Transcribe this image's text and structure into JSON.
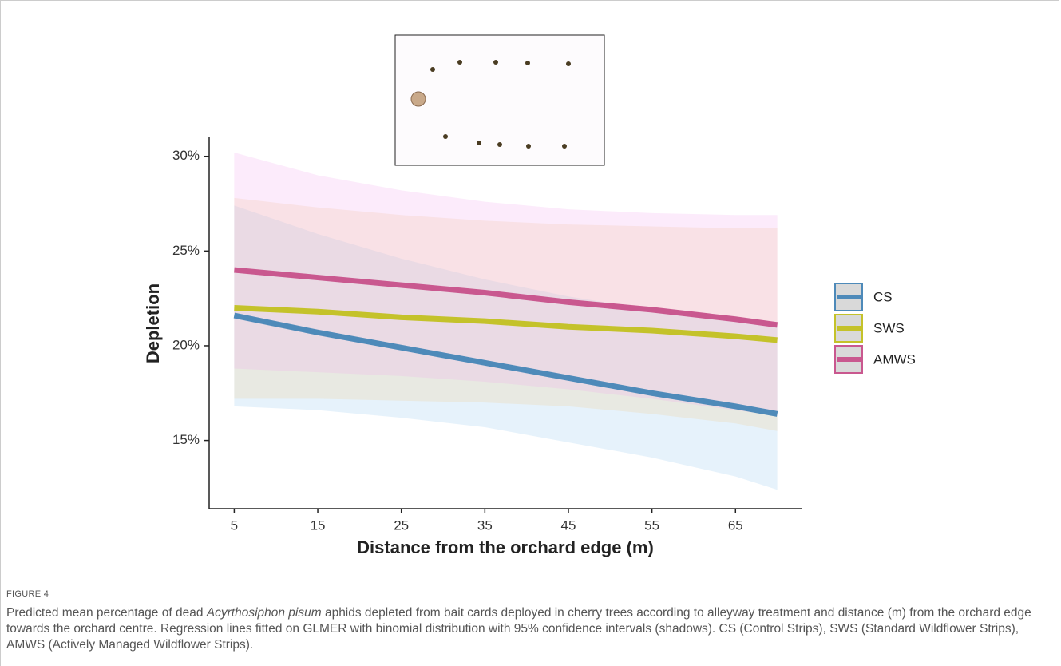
{
  "chart_data": {
    "type": "line",
    "x_label": "Distance from the orchard edge (m)",
    "y_label": "Depletion",
    "x": [
      5,
      15,
      25,
      35,
      45,
      55,
      65,
      70
    ],
    "xlim": [
      2,
      73
    ],
    "xticks": [
      5,
      15,
      25,
      35,
      45,
      55,
      65
    ],
    "ylim": [
      11.4,
      31
    ],
    "yticks": [
      {
        "value": 15,
        "label": "15%"
      },
      {
        "value": 20,
        "label": "20%"
      },
      {
        "value": 25,
        "label": "25%"
      },
      {
        "value": 30,
        "label": "30%"
      }
    ],
    "grid": false,
    "legend": "right",
    "series": [
      {
        "name": "CS",
        "color": "#4e8ab9",
        "band_color": "#8ec3ef",
        "values": [
          21.6,
          20.7,
          19.9,
          19.1,
          18.3,
          17.5,
          16.8,
          16.4
        ],
        "upper": [
          27.4,
          25.9,
          24.6,
          23.5,
          22.6,
          21.9,
          21.4,
          21.2
        ],
        "lower": [
          16.8,
          16.6,
          16.2,
          15.7,
          14.9,
          14.1,
          13.1,
          12.4
        ]
      },
      {
        "name": "SWS",
        "color": "#c4c22a",
        "band_color": "#f3c98a",
        "values": [
          22.0,
          21.8,
          21.5,
          21.3,
          21.0,
          20.8,
          20.5,
          20.3
        ],
        "upper": [
          27.8,
          27.3,
          26.9,
          26.6,
          26.4,
          26.3,
          26.2,
          26.2
        ],
        "lower": [
          17.2,
          17.2,
          17.1,
          17.0,
          16.8,
          16.4,
          15.9,
          15.5
        ]
      },
      {
        "name": "AMWS",
        "color": "#c9588f",
        "band_color": "#f2a6ee",
        "values": [
          24.0,
          23.6,
          23.2,
          22.8,
          22.3,
          21.9,
          21.4,
          21.1
        ],
        "upper": [
          30.2,
          29.0,
          28.2,
          27.6,
          27.2,
          27.0,
          26.9,
          26.9
        ],
        "lower": [
          18.8,
          18.6,
          18.4,
          18.1,
          17.7,
          17.2,
          16.6,
          16.3
        ]
      }
    ]
  },
  "figure": {
    "label": "FIGURE 4",
    "caption_start": "Predicted mean percentage of dead ",
    "caption_species": "Acyrthosiphon pisum",
    "caption_end": " aphids depleted from bait cards deployed in cherry trees according to alleyway treatment and distance (m) from the orchard edge towards the orchard centre. Regression lines fitted on GLMER with binomial distribution with 95% confidence intervals (shadows). CS (Control Strips), SWS (Standard Wildflower Strips), AMWS (Actively Managed Wildflower Strips)."
  }
}
